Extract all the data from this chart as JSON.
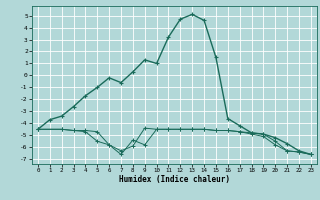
{
  "xlabel": "Humidex (Indice chaleur)",
  "background_color": "#b2d8d8",
  "grid_color": "#ffffff",
  "line_color": "#1a6b5a",
  "xlim": [
    -0.5,
    23.5
  ],
  "ylim": [
    -7.4,
    5.8
  ],
  "xticks": [
    0,
    1,
    2,
    3,
    4,
    5,
    6,
    7,
    8,
    9,
    10,
    11,
    12,
    13,
    14,
    15,
    16,
    17,
    18,
    19,
    20,
    21,
    22,
    23
  ],
  "yticks": [
    -7,
    -6,
    -5,
    -4,
    -3,
    -2,
    -1,
    0,
    1,
    2,
    3,
    4,
    5
  ],
  "series1_x": [
    0,
    1,
    2,
    3,
    4,
    5,
    6,
    7,
    8,
    9,
    10,
    11,
    12,
    13,
    14,
    15,
    16,
    17,
    18,
    19,
    20,
    21,
    22,
    23
  ],
  "series1_y": [
    -4.5,
    -3.7,
    -3.4,
    -2.6,
    -1.7,
    -1.0,
    -0.2,
    -0.6,
    0.3,
    1.3,
    1.0,
    3.2,
    4.7,
    5.1,
    4.6,
    1.5,
    -3.6,
    -4.2,
    -4.8,
    -4.9,
    -5.2,
    -5.7,
    -6.3,
    -6.6
  ],
  "series2_x": [
    0,
    2,
    3,
    4,
    5,
    6,
    7,
    8,
    9,
    10,
    11,
    12,
    13,
    14,
    15,
    16,
    17,
    18,
    19,
    20,
    21,
    22,
    23
  ],
  "series2_y": [
    -4.5,
    -4.5,
    -4.6,
    -4.6,
    -4.7,
    -5.8,
    -6.3,
    -5.9,
    -4.4,
    -4.5,
    -4.5,
    -4.5,
    -4.5,
    -4.5,
    -4.6,
    -4.6,
    -4.7,
    -4.8,
    -4.9,
    -5.5,
    -6.3,
    -6.4,
    -6.6
  ],
  "series3_x": [
    0,
    2,
    3,
    4,
    5,
    6,
    7,
    8,
    9,
    10,
    11,
    12,
    13,
    14,
    15,
    16,
    17,
    18,
    19,
    20,
    21,
    22,
    23
  ],
  "series3_y": [
    -4.5,
    -4.5,
    -4.6,
    -4.7,
    -5.5,
    -5.8,
    -6.6,
    -5.4,
    -5.8,
    -4.5,
    -4.5,
    -4.5,
    -4.5,
    -4.5,
    -4.6,
    -4.6,
    -4.7,
    -4.9,
    -5.1,
    -5.8,
    -6.3,
    -6.4,
    -6.6
  ]
}
